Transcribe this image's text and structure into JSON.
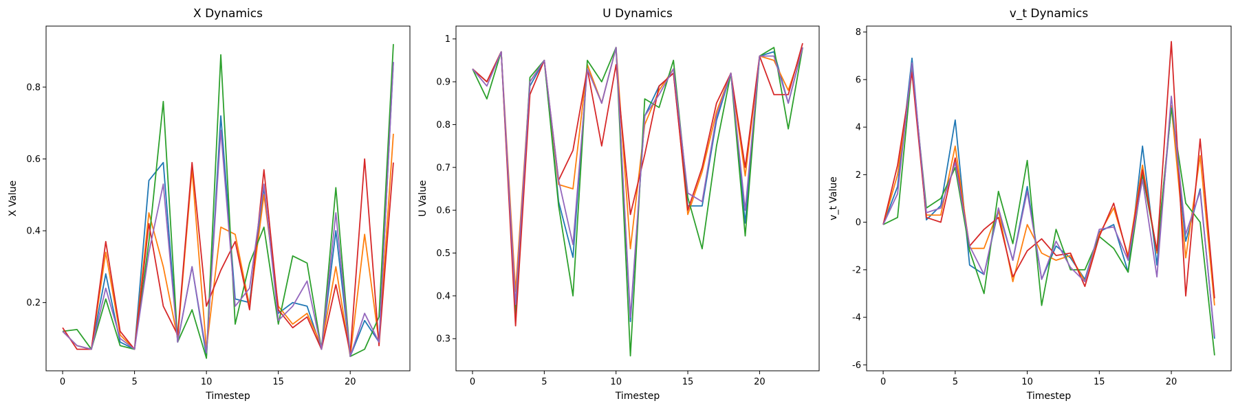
{
  "chart_data": [
    {
      "type": "line",
      "title": "X Dynamics",
      "xlabel": "Timestep",
      "ylabel": "X Value",
      "xlim": [
        -1.15,
        24.15
      ],
      "ylim": [
        0.01,
        0.97
      ],
      "xticks": [
        0,
        5,
        10,
        15,
        20
      ],
      "yticks": [
        0.2,
        0.4,
        0.6,
        0.8
      ],
      "grid": false,
      "x": [
        0,
        1,
        2,
        3,
        4,
        5,
        6,
        7,
        8,
        9,
        10,
        11,
        12,
        13,
        14,
        15,
        16,
        17,
        18,
        19,
        20,
        21,
        22,
        23
      ],
      "series": [
        {
          "color": "#1f77b4",
          "values": [
            0.12,
            0.08,
            0.07,
            0.28,
            0.09,
            0.07,
            0.54,
            0.59,
            0.09,
            0.3,
            0.05,
            0.72,
            0.21,
            0.2,
            0.52,
            0.17,
            0.2,
            0.19,
            0.07,
            0.4,
            0.05,
            0.15,
            0.09,
            0.87
          ]
        },
        {
          "color": "#ff7f0e",
          "values": [
            0.12,
            0.08,
            0.07,
            0.34,
            0.11,
            0.07,
            0.45,
            0.3,
            0.1,
            0.57,
            0.07,
            0.41,
            0.39,
            0.19,
            0.5,
            0.19,
            0.14,
            0.17,
            0.08,
            0.3,
            0.05,
            0.39,
            0.09,
            0.67
          ]
        },
        {
          "color": "#2ca02c",
          "values": [
            0.12,
            0.125,
            0.07,
            0.21,
            0.08,
            0.07,
            0.37,
            0.76,
            0.09,
            0.18,
            0.045,
            0.89,
            0.14,
            0.31,
            0.41,
            0.14,
            0.33,
            0.31,
            0.07,
            0.52,
            0.05,
            0.07,
            0.16,
            0.92
          ]
        },
        {
          "color": "#d62728",
          "values": [
            0.13,
            0.07,
            0.07,
            0.37,
            0.12,
            0.07,
            0.42,
            0.19,
            0.11,
            0.59,
            0.19,
            0.29,
            0.37,
            0.18,
            0.57,
            0.18,
            0.13,
            0.16,
            0.07,
            0.25,
            0.06,
            0.6,
            0.08,
            0.59
          ]
        },
        {
          "color": "#9467bd",
          "values": [
            0.12,
            0.08,
            0.07,
            0.24,
            0.1,
            0.07,
            0.34,
            0.53,
            0.09,
            0.3,
            0.06,
            0.68,
            0.19,
            0.24,
            0.53,
            0.15,
            0.19,
            0.26,
            0.07,
            0.45,
            0.05,
            0.17,
            0.09,
            0.87
          ]
        }
      ]
    },
    {
      "type": "line",
      "title": "U Dynamics",
      "xlabel": "Timestep",
      "ylabel": "U Value",
      "xlim": [
        -1.15,
        24.15
      ],
      "ylim": [
        0.225,
        1.03
      ],
      "xticks": [
        0,
        5,
        10,
        15,
        20
      ],
      "yticks": [
        0.3,
        0.4,
        0.5,
        0.6,
        0.7,
        0.8,
        0.9,
        1.0
      ],
      "grid": false,
      "x": [
        0,
        1,
        2,
        3,
        4,
        5,
        6,
        7,
        8,
        9,
        10,
        11,
        12,
        13,
        14,
        15,
        16,
        17,
        18,
        19,
        20,
        21,
        22,
        23
      ],
      "series": [
        {
          "color": "#1f77b4",
          "values": [
            0.93,
            0.9,
            0.97,
            0.36,
            0.89,
            0.95,
            0.62,
            0.49,
            0.94,
            0.85,
            0.98,
            0.34,
            0.82,
            0.89,
            0.92,
            0.61,
            0.61,
            0.81,
            0.92,
            0.57,
            0.96,
            0.97,
            0.85,
            0.98
          ]
        },
        {
          "color": "#ff7f0e",
          "values": [
            0.93,
            0.9,
            0.97,
            0.41,
            0.9,
            0.95,
            0.66,
            0.65,
            0.94,
            0.85,
            0.98,
            0.51,
            0.8,
            0.88,
            0.93,
            0.59,
            0.69,
            0.83,
            0.92,
            0.68,
            0.96,
            0.95,
            0.88,
            0.98
          ]
        },
        {
          "color": "#2ca02c",
          "values": [
            0.93,
            0.86,
            0.97,
            0.35,
            0.91,
            0.95,
            0.61,
            0.4,
            0.95,
            0.9,
            0.98,
            0.26,
            0.86,
            0.84,
            0.95,
            0.63,
            0.51,
            0.75,
            0.92,
            0.54,
            0.96,
            0.98,
            0.79,
            0.98
          ]
        },
        {
          "color": "#d62728",
          "values": [
            0.93,
            0.9,
            0.97,
            0.33,
            0.87,
            0.95,
            0.67,
            0.74,
            0.93,
            0.75,
            0.94,
            0.59,
            0.73,
            0.89,
            0.92,
            0.6,
            0.7,
            0.85,
            0.92,
            0.7,
            0.96,
            0.87,
            0.87,
            0.99
          ]
        },
        {
          "color": "#9467bd",
          "values": [
            0.93,
            0.89,
            0.97,
            0.38,
            0.9,
            0.95,
            0.67,
            0.52,
            0.93,
            0.85,
            0.98,
            0.35,
            0.82,
            0.87,
            0.93,
            0.64,
            0.62,
            0.82,
            0.92,
            0.6,
            0.96,
            0.96,
            0.85,
            0.98
          ]
        }
      ]
    },
    {
      "type": "line",
      "title": "v_t Dynamics",
      "xlabel": "Timestep",
      "ylabel": "v_t Value",
      "xlim": [
        -1.15,
        24.15
      ],
      "ylim": [
        -6.25,
        8.25
      ],
      "xticks": [
        0,
        5,
        10,
        15,
        20
      ],
      "yticks": [
        -6,
        -4,
        -2,
        0,
        2,
        4,
        6,
        8
      ],
      "grid": false,
      "x": [
        0,
        1,
        2,
        3,
        4,
        5,
        6,
        7,
        8,
        9,
        10,
        11,
        12,
        13,
        14,
        15,
        16,
        17,
        18,
        19,
        20,
        21,
        22,
        23
      ],
      "series": [
        {
          "color": "#1f77b4",
          "values": [
            -0.1,
            1.5,
            6.9,
            0.1,
            0.7,
            4.3,
            -1.8,
            -2.2,
            0.5,
            -1.6,
            1.5,
            -2.4,
            -1.0,
            -1.5,
            -2.4,
            -0.4,
            -0.1,
            -2.1,
            3.2,
            -1.8,
            4.9,
            -0.8,
            1.4,
            -4.9
          ]
        },
        {
          "color": "#ff7f0e",
          "values": [
            -0.1,
            2.0,
            6.4,
            0.3,
            0.3,
            3.2,
            -1.1,
            -1.1,
            0.5,
            -2.5,
            -0.1,
            -1.3,
            -1.6,
            -1.4,
            -2.5,
            -0.5,
            0.6,
            -1.4,
            2.4,
            -1.3,
            4.9,
            -1.5,
            2.8,
            -3.5
          ]
        },
        {
          "color": "#2ca02c",
          "values": [
            -0.1,
            0.2,
            6.5,
            0.6,
            1.0,
            2.3,
            -1.2,
            -3.0,
            1.3,
            -0.9,
            2.6,
            -3.5,
            -0.3,
            -2.0,
            -2.0,
            -0.6,
            -1.1,
            -2.1,
            2.0,
            -1.2,
            4.8,
            0.8,
            0.0,
            -5.6
          ]
        },
        {
          "color": "#d62728",
          "values": [
            -0.1,
            2.4,
            6.3,
            0.2,
            0.0,
            2.7,
            -1.0,
            -0.3,
            0.2,
            -2.3,
            -1.2,
            -0.7,
            -1.4,
            -1.3,
            -2.7,
            -0.6,
            0.8,
            -1.5,
            2.2,
            -1.2,
            7.6,
            -3.1,
            3.5,
            -3.2
          ]
        },
        {
          "color": "#9467bd",
          "values": [
            -0.1,
            1.2,
            6.7,
            0.4,
            0.6,
            2.5,
            -1.0,
            -2.2,
            0.6,
            -1.6,
            1.3,
            -2.4,
            -0.8,
            -1.9,
            -2.5,
            -0.3,
            -0.2,
            -1.6,
            1.8,
            -2.3,
            5.3,
            -0.5,
            1.3,
            -4.8
          ]
        }
      ]
    }
  ]
}
